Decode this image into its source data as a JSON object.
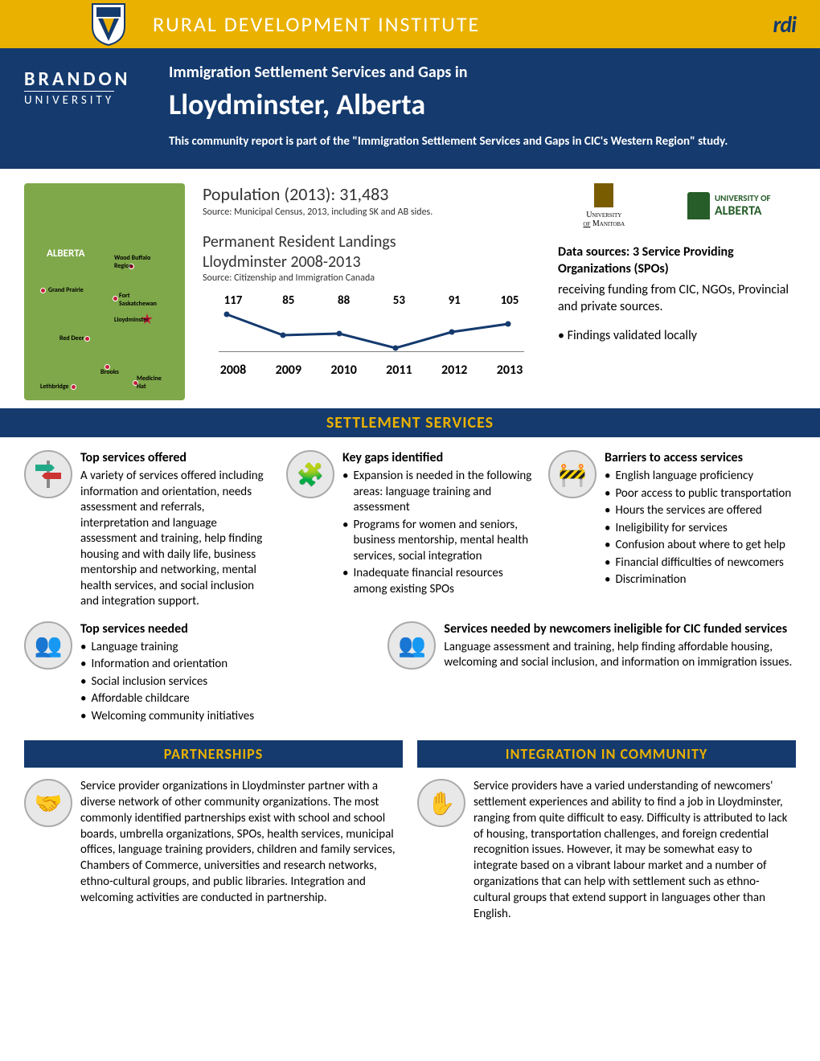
{
  "header": {
    "institute": "RURAL DEVELOPMENT INSTITUTE",
    "rdi": "rdi",
    "brandon1": "BRANDON",
    "brandon2": "UNIVERSITY",
    "subtitle": "Immigration Settlement Services and Gaps in",
    "title": "Lloydminster, Alberta",
    "intro": "This community report is part of the \"Immigration Settlement Services and Gaps in CIC's Western Region\" study."
  },
  "map": {
    "province": "ALBERTA"
  },
  "population": {
    "label": "Population (2013): 31,483",
    "source": "Source: Municipal Census, 2013, including SK and AB sides."
  },
  "pr": {
    "line1": "Permanent Resident Landings",
    "line2": "Lloydminster 2008-2013",
    "source": "Source: Citizenship and Immigration Canada",
    "values": [
      "117",
      "85",
      "88",
      "53",
      "91",
      "105"
    ],
    "years": [
      "2008",
      "2009",
      "2010",
      "2011",
      "2012",
      "2013"
    ],
    "points": [
      [
        10,
        8
      ],
      [
        80,
        34
      ],
      [
        150,
        32
      ],
      [
        220,
        50
      ],
      [
        290,
        30
      ],
      [
        360,
        20
      ]
    ],
    "line_color": "#143a6e"
  },
  "datasources": {
    "uni_m": "UNIVERSITY OF MANITOBA",
    "uni_a": "UNIVERSITY OF ALBERTA",
    "head": "Data sources: 3 Service Providing Organizations (SPOs)",
    "body": "receiving funding from CIC, NGOs, Provincial and private sources.",
    "bullet": "• Findings validated locally"
  },
  "sections": {
    "settlement": "SETTLEMENT SERVICES",
    "partnerships": "PARTNERSHIPS",
    "integration": "INTEGRATION IN COMMUNITY"
  },
  "services": {
    "offered": {
      "title": "Top services offered",
      "body": "A variety of services offered including information and orientation, needs assessment and referrals, interpretation and language assessment and training, help finding housing and with daily life, business mentorship and networking, mental health services, and social inclusion and integration support."
    },
    "gaps": {
      "title": "Key gaps identified",
      "items": [
        "Expansion is needed in the following areas: language training and assessment",
        "Programs for women and seniors, business mentorship, mental health services, social integration",
        "Inadequate financial resources among existing SPOs"
      ]
    },
    "barriers": {
      "title": "Barriers to access services",
      "items": [
        "English language proficiency",
        "Poor access to public transportation",
        "Hours the services are offered",
        "Ineligibility for services",
        "Confusion about where to get help",
        "Financial difficulties of newcomers",
        "Discrimination"
      ]
    },
    "needed": {
      "title": "Top services needed",
      "items": [
        "Language training",
        "Information and orientation",
        "Social inclusion services",
        "Affordable childcare",
        "Welcoming community initiatives"
      ]
    },
    "ineligible": {
      "title": "Services needed by newcomers ineligible for CIC funded services",
      "body": "Language assessment and training, help finding affordable housing, welcoming and social inclusion, and information on immigration issues."
    }
  },
  "partnerships": {
    "body": "Service provider organizations in Lloydminster partner with a diverse network of other community organizations. The most commonly identified partnerships exist  with school and school boards, umbrella organizations, SPOs, health services, municipal offices, language training providers, children and family services, Chambers of Commerce, universities and research networks, ethno-cultural groups, and public libraries.  Integration and welcoming activities are conducted in partnership."
  },
  "integration": {
    "body": "Service providers have a varied understanding  of newcomers' settlement experiences and ability to find a job in Lloydminster, ranging from quite difficult to easy. Difficulty is attributed to lack of housing, transportation challenges, and foreign credential recognition issues. However, it may be somewhat easy to integrate based on a vibrant labour market and a number of organizations that can help with settlement such as ethno-cultural groups that extend support in languages other than English."
  }
}
